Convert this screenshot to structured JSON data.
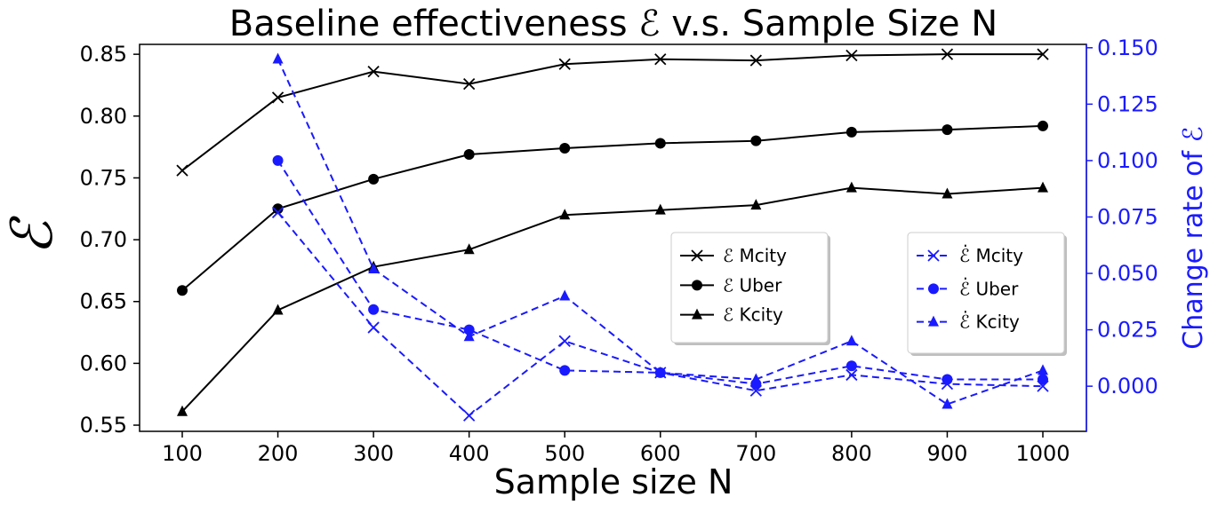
{
  "chart_data": {
    "type": "line",
    "title": "Baseline effectiveness ℰ v.s. Sample Size N",
    "xlabel": "Sample size N",
    "ylabel_left": "ℰ",
    "ylabel_right": "Change rate of ℰ",
    "x": [
      100,
      200,
      300,
      400,
      500,
      600,
      700,
      800,
      900,
      1000
    ],
    "x_ticks": [
      "100",
      "200",
      "300",
      "400",
      "500",
      "600",
      "700",
      "800",
      "900",
      "1000"
    ],
    "ylim_left": [
      0.545,
      0.858
    ],
    "ylim_right": [
      -0.02,
      0.1515
    ],
    "y_ticks_left": [
      "0.55",
      "0.60",
      "0.65",
      "0.70",
      "0.75",
      "0.80",
      "0.85"
    ],
    "y_ticks_left_values": [
      0.55,
      0.6,
      0.65,
      0.7,
      0.75,
      0.8,
      0.85
    ],
    "y_ticks_right": [
      "0.000",
      "0.025",
      "0.050",
      "0.075",
      "0.100",
      "0.125",
      "0.150"
    ],
    "y_ticks_right_values": [
      0.0,
      0.025,
      0.05,
      0.075,
      0.1,
      0.125,
      0.15
    ],
    "colors": {
      "black": "#000000",
      "blue": "#1a1aff",
      "frame": "#000000"
    },
    "series": [
      {
        "name": "ℰ Mcity",
        "axis": "left",
        "marker": "x",
        "style": "solid",
        "color": "#000000",
        "values": [
          0.756,
          0.815,
          0.836,
          0.826,
          0.842,
          0.846,
          0.845,
          0.849,
          0.85,
          0.85
        ]
      },
      {
        "name": "ℰ Uber",
        "axis": "left",
        "marker": "circle",
        "style": "solid",
        "color": "#000000",
        "values": [
          0.659,
          0.725,
          0.749,
          0.769,
          0.774,
          0.778,
          0.78,
          0.787,
          0.789,
          0.792
        ]
      },
      {
        "name": "ℰ Kcity",
        "axis": "left",
        "marker": "triangle",
        "style": "solid",
        "color": "#000000",
        "values": [
          0.561,
          0.643,
          0.678,
          0.692,
          0.72,
          0.724,
          0.728,
          0.742,
          0.737,
          0.742
        ]
      },
      {
        "name": "ℰ̇ Mcity",
        "axis": "right",
        "marker": "x",
        "style": "dashed",
        "color": "#1a1aff",
        "values": [
          null,
          0.077,
          0.026,
          -0.013,
          0.02,
          0.006,
          -0.002,
          0.005,
          0.001,
          0.0
        ]
      },
      {
        "name": "ℰ̇ Uber",
        "axis": "right",
        "marker": "circle",
        "style": "dashed",
        "color": "#1a1aff",
        "values": [
          null,
          0.1,
          0.034,
          0.025,
          0.007,
          0.006,
          0.001,
          0.009,
          0.003,
          0.003
        ]
      },
      {
        "name": "ℰ̇ Kcity",
        "axis": "right",
        "marker": "triangle",
        "style": "dashed",
        "color": "#1a1aff",
        "values": [
          null,
          0.145,
          0.052,
          0.022,
          0.04,
          0.006,
          0.003,
          0.02,
          -0.008,
          0.007
        ]
      }
    ],
    "legends": [
      {
        "position": "center-right",
        "entries": [
          "ℰ Mcity",
          "ℰ Uber",
          "ℰ Kcity"
        ]
      },
      {
        "position": "right",
        "entries": [
          "ℰ̇ Mcity",
          "ℰ̇ Uber",
          "ℰ̇ Kcity"
        ]
      }
    ]
  }
}
